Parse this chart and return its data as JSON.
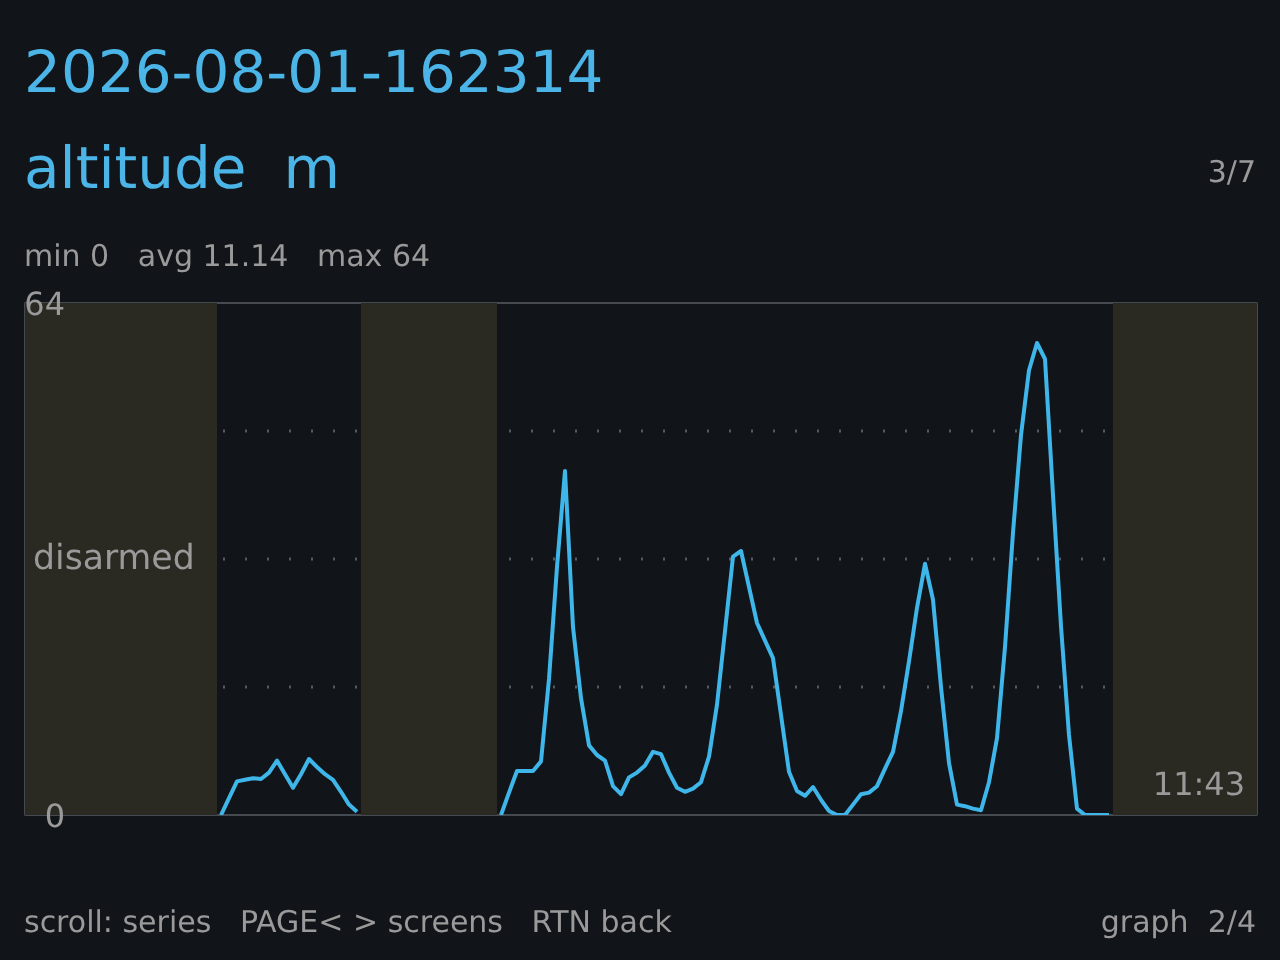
{
  "chart_data": {
    "type": "line",
    "title": "2026-08-01-162314",
    "subtitle": "altitude  m",
    "annotations": [
      "3/7",
      "min 0   avg 11.14   max 64",
      "scroll: series   PAGE< > screens   RTN back",
      "graph  2/4",
      "11:43",
      "disarmed"
    ],
    "categories": [
      null,
      null,
      null,
      null,
      null,
      null,
      null,
      null,
      null,
      null,
      null,
      null,
      null,
      null,
      null,
      null,
      null,
      null,
      null,
      null,
      null,
      null,
      null,
      null,
      null,
      null,
      null,
      null,
      null,
      null,
      null,
      null,
      null,
      null,
      null,
      null,
      null,
      null,
      null,
      null,
      null,
      null,
      null,
      null,
      null,
      null,
      null,
      null,
      null,
      null,
      null,
      null,
      null,
      null,
      null,
      null,
      null,
      null,
      null,
      null,
      null,
      null,
      null,
      null,
      null,
      null,
      null,
      null,
      null,
      null,
      null,
      null,
      null,
      null,
      null,
      null,
      null,
      null,
      null,
      null,
      null,
      null,
      null,
      null,
      null,
      null,
      null,
      null,
      null,
      null,
      null,
      null,
      null,
      null,
      null,
      null,
      null,
      null,
      null,
      null,
      null,
      null,
      null,
      null,
      null,
      null,
      null,
      null,
      null,
      null,
      null,
      null,
      null,
      null,
      null,
      null,
      null,
      null,
      null,
      null,
      null,
      null,
      null,
      null,
      null,
      null,
      null,
      null,
      null,
      null,
      null,
      null,
      null,
      null,
      null,
      null,
      null,
      null,
      null,
      null,
      null,
      null,
      null,
      null,
      null,
      null,
      null,
      null,
      null,
      null,
      null,
      null,
      null,
      null
    ],
    "series": [
      {
        "color": "#3fb6ea",
        "values": [
          null,
          null,
          null,
          null,
          null,
          null,
          null,
          null,
          null,
          null,
          null,
          null,
          null,
          null,
          null,
          null,
          null,
          null,
          null,
          null,
          null,
          null,
          null,
          null,
          0,
          2.1,
          4.2,
          4.4,
          4.6,
          4.5,
          5.3,
          6.8,
          5.1,
          3.4,
          5.1,
          7,
          6,
          5.1,
          4.4,
          2.9,
          1.3,
          0.4,
          null,
          null,
          null,
          null,
          null,
          null,
          null,
          null,
          null,
          null,
          null,
          null,
          null,
          null,
          null,
          null,
          null,
          0,
          2.8,
          5.5,
          5.5,
          5.5,
          6.7,
          17,
          31,
          43,
          23.5,
          14.6,
          8.7,
          7.5,
          6.8,
          3.6,
          2.6,
          4.7,
          5.3,
          6.2,
          7.9,
          7.6,
          5.3,
          3.4,
          2.9,
          3.3,
          4.1,
          7.3,
          13.8,
          23,
          32.3,
          33,
          28.5,
          24,
          21.8,
          19.6,
          12.5,
          5.4,
          3,
          2.4,
          3.5,
          1.9,
          0.5,
          0,
          0,
          1.3,
          2.6,
          2.8,
          3.6,
          5.8,
          7.9,
          13,
          19.2,
          25.9,
          31.4,
          26.9,
          16,
          6.5,
          1.3,
          1.1,
          0.8,
          0.6,
          4.1,
          9.6,
          21,
          35.3,
          47.5,
          55.6,
          59,
          57,
          40,
          23.6,
          10,
          0.8,
          0,
          0,
          0,
          0,
          null,
          null,
          null,
          null,
          null,
          null,
          null,
          null,
          null,
          null,
          null,
          null,
          null,
          null,
          null,
          null,
          null,
          null
        ]
      }
    ],
    "ylim": [
      0,
      64
    ],
    "yticks": [
      {
        "value": 0,
        "label": "0"
      },
      {
        "value": 16,
        "label": null
      },
      {
        "value": 32,
        "label": null
      },
      {
        "value": 48,
        "label": null
      },
      {
        "value": 64,
        "label": "64"
      }
    ],
    "grid": "y"
  }
}
